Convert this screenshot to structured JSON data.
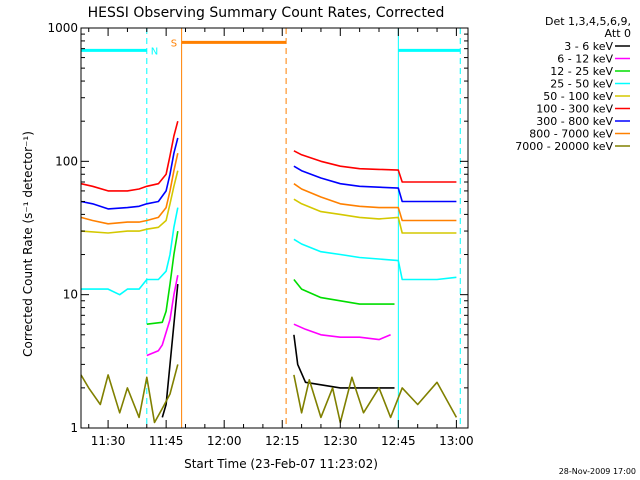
{
  "chart_data": {
    "type": "line",
    "title": "HESSI Observing Summary Count Rates, Corrected",
    "xlabel": "Start Time (23-Feb-07 11:23:02)",
    "ylabel": "Corrected Count Rate (s⁻¹ detector⁻¹)",
    "footer": "28-Nov-2009 17:00",
    "y_scale": "log",
    "ylim": [
      1,
      1000
    ],
    "xlim": [
      "11:23",
      "13:03"
    ],
    "x_ticks": [
      "11:30",
      "11:45",
      "12:00",
      "12:15",
      "12:30",
      "12:45",
      "13:00"
    ],
    "y_ticks": [
      "1",
      "10",
      "100",
      "1000"
    ],
    "legend": {
      "position": "top-right",
      "header": [
        "Det 1,3,4,5,6,9,",
        "Att 0"
      ]
    },
    "series": [
      {
        "name": "3 - 6 keV",
        "color": "#000000",
        "segments": [
          [
            [
              "11:44",
              1.2
            ],
            [
              "11:45",
              1.5
            ],
            [
              "11:46",
              3.0
            ],
            [
              "11:47",
              6.0
            ],
            [
              "11:48",
              12
            ]
          ],
          [
            [
              "12:18",
              5.0
            ],
            [
              "12:19",
              3.0
            ],
            [
              "12:21",
              2.2
            ],
            [
              "12:30",
              2.0
            ],
            [
              "12:40",
              2.0
            ],
            [
              "12:44",
              2.0
            ]
          ]
        ]
      },
      {
        "name": "6 - 12 keV",
        "color": "#ff00ff",
        "segments": [
          [
            [
              "11:40",
              3.5
            ],
            [
              "11:43",
              3.8
            ],
            [
              "11:44",
              4.2
            ],
            [
              "11:46",
              6.5
            ],
            [
              "11:47",
              10
            ],
            [
              "11:48",
              14
            ]
          ],
          [
            [
              "12:18",
              6.0
            ],
            [
              "12:21",
              5.5
            ],
            [
              "12:25",
              5.0
            ],
            [
              "12:30",
              4.8
            ],
            [
              "12:35",
              4.8
            ],
            [
              "12:40",
              4.6
            ],
            [
              "12:43",
              5.0
            ]
          ]
        ]
      },
      {
        "name": "12 - 25 keV",
        "color": "#00dd00",
        "segments": [
          [
            [
              "11:40",
              6.0
            ],
            [
              "11:44",
              6.2
            ],
            [
              "11:45",
              7.5
            ],
            [
              "11:46",
              12
            ],
            [
              "11:47",
              20
            ],
            [
              "11:48",
              30
            ]
          ],
          [
            [
              "12:18",
              13
            ],
            [
              "12:20",
              11
            ],
            [
              "12:25",
              9.5
            ],
            [
              "12:30",
              9.0
            ],
            [
              "12:35",
              8.5
            ],
            [
              "12:40",
              8.5
            ],
            [
              "12:44",
              8.5
            ]
          ]
        ]
      },
      {
        "name": "25 - 50 keV",
        "color": "#00ffff",
        "segments": [
          [
            [
              "11:23",
              11
            ],
            [
              "11:30",
              11
            ],
            [
              "11:33",
              10
            ],
            [
              "11:35",
              11
            ],
            [
              "11:38",
              11
            ],
            [
              "11:40",
              13
            ],
            [
              "11:43",
              13
            ],
            [
              "11:45",
              15
            ],
            [
              "11:46",
              20
            ],
            [
              "11:47",
              32
            ],
            [
              "11:48",
              45
            ]
          ],
          [
            [
              "12:18",
              26
            ],
            [
              "12:20",
              24
            ],
            [
              "12:25",
              21
            ],
            [
              "12:30",
              20
            ],
            [
              "12:35",
              19
            ],
            [
              "12:40",
              18.5
            ],
            [
              "12:45",
              18
            ],
            [
              "12:46",
              13
            ],
            [
              "12:50",
              13
            ],
            [
              "12:55",
              13
            ],
            [
              "13:00",
              13.5
            ]
          ]
        ]
      },
      {
        "name": "50 - 100 keV",
        "color": "#d4c800",
        "segments": [
          [
            [
              "11:23",
              30
            ],
            [
              "11:30",
              29
            ],
            [
              "11:35",
              30
            ],
            [
              "11:38",
              30
            ],
            [
              "11:40",
              31
            ],
            [
              "11:43",
              32
            ],
            [
              "11:45",
              36
            ],
            [
              "11:46",
              48
            ],
            [
              "11:47",
              65
            ],
            [
              "11:48",
              85
            ]
          ],
          [
            [
              "12:18",
              52
            ],
            [
              "12:20",
              48
            ],
            [
              "12:25",
              42
            ],
            [
              "12:30",
              40
            ],
            [
              "12:35",
              38
            ],
            [
              "12:40",
              37
            ],
            [
              "12:45",
              38
            ],
            [
              "12:46",
              29
            ],
            [
              "12:50",
              29
            ],
            [
              "12:55",
              29
            ],
            [
              "13:00",
              29
            ]
          ]
        ]
      },
      {
        "name": "100 - 300 keV",
        "color": "#ff0000",
        "segments": [
          [
            [
              "11:23",
              68
            ],
            [
              "11:26",
              65
            ],
            [
              "11:30",
              60
            ],
            [
              "11:35",
              60
            ],
            [
              "11:38",
              62
            ],
            [
              "11:40",
              65
            ],
            [
              "11:43",
              68
            ],
            [
              "11:45",
              80
            ],
            [
              "11:46",
              110
            ],
            [
              "11:47",
              155
            ],
            [
              "11:48",
              200
            ]
          ],
          [
            [
              "12:18",
              120
            ],
            [
              "12:20",
              112
            ],
            [
              "12:25",
              100
            ],
            [
              "12:30",
              92
            ],
            [
              "12:35",
              88
            ],
            [
              "12:40",
              87
            ],
            [
              "12:45",
              86
            ],
            [
              "12:46",
              70
            ],
            [
              "12:50",
              70
            ],
            [
              "12:55",
              70
            ],
            [
              "13:00",
              70
            ]
          ]
        ]
      },
      {
        "name": "300 - 800 keV",
        "color": "#0000ff",
        "segments": [
          [
            [
              "11:23",
              50
            ],
            [
              "11:26",
              48
            ],
            [
              "11:30",
              44
            ],
            [
              "11:35",
              45
            ],
            [
              "11:38",
              46
            ],
            [
              "11:40",
              48
            ],
            [
              "11:43",
              50
            ],
            [
              "11:45",
              60
            ],
            [
              "11:46",
              80
            ],
            [
              "11:47",
              115
            ],
            [
              "11:48",
              150
            ]
          ],
          [
            [
              "12:18",
              92
            ],
            [
              "12:20",
              85
            ],
            [
              "12:25",
              75
            ],
            [
              "12:30",
              68
            ],
            [
              "12:35",
              65
            ],
            [
              "12:40",
              64
            ],
            [
              "12:45",
              63
            ],
            [
              "12:46",
              50
            ],
            [
              "12:50",
              50
            ],
            [
              "12:55",
              50
            ],
            [
              "13:00",
              50
            ]
          ]
        ]
      },
      {
        "name": "800 - 7000 keV",
        "color": "#ff8000",
        "segments": [
          [
            [
              "11:23",
              38
            ],
            [
              "11:26",
              36
            ],
            [
              "11:30",
              34
            ],
            [
              "11:35",
              35
            ],
            [
              "11:38",
              35
            ],
            [
              "11:40",
              36
            ],
            [
              "11:43",
              38
            ],
            [
              "11:45",
              45
            ],
            [
              "11:46",
              60
            ],
            [
              "11:47",
              85
            ],
            [
              "11:48",
              115
            ]
          ],
          [
            [
              "12:18",
              68
            ],
            [
              "12:20",
              62
            ],
            [
              "12:25",
              54
            ],
            [
              "12:30",
              48
            ],
            [
              "12:35",
              46
            ],
            [
              "12:40",
              45
            ],
            [
              "12:45",
              45
            ],
            [
              "12:46",
              36
            ],
            [
              "12:50",
              36
            ],
            [
              "12:55",
              36
            ],
            [
              "13:00",
              36
            ]
          ]
        ]
      },
      {
        "name": "7000 - 20000 keV",
        "color": "#808000",
        "segments": [
          [
            [
              "11:23",
              2.5
            ],
            [
              "11:25",
              2.0
            ],
            [
              "11:28",
              1.5
            ],
            [
              "11:30",
              2.5
            ],
            [
              "11:33",
              1.3
            ],
            [
              "11:35",
              2.0
            ],
            [
              "11:38",
              1.2
            ],
            [
              "11:40",
              2.4
            ],
            [
              "11:42",
              1.1
            ],
            [
              "11:44",
              1.4
            ],
            [
              "11:46",
              1.8
            ],
            [
              "11:48",
              3.0
            ]
          ],
          [
            [
              "12:18",
              2.5
            ],
            [
              "12:20",
              1.3
            ],
            [
              "12:22",
              2.3
            ],
            [
              "12:25",
              1.2
            ],
            [
              "12:28",
              2.0
            ],
            [
              "12:30",
              1.1
            ],
            [
              "12:33",
              2.4
            ],
            [
              "12:36",
              1.3
            ],
            [
              "12:40",
              2.0
            ],
            [
              "12:43",
              1.2
            ],
            [
              "12:46",
              2.0
            ],
            [
              "12:50",
              1.5
            ],
            [
              "12:55",
              2.2
            ],
            [
              "13:00",
              1.2
            ]
          ]
        ]
      }
    ],
    "overlays": {
      "night_bars": [
        [
          "11:23",
          "11:40"
        ],
        [
          "12:45",
          "13:01"
        ]
      ],
      "night_level": 680,
      "night_label": "N",
      "night_label_time": "11:42",
      "night_lines_dashed": [
        "11:40",
        "13:01"
      ],
      "night_lines_solid": [
        "12:45"
      ],
      "saa_bar": [
        "11:49",
        "12:16"
      ],
      "saa_level": 780,
      "saa_label": "S",
      "saa_label_time": "11:47",
      "saa_lines_solid": [
        "11:49"
      ],
      "saa_lines_dashed": [
        "12:16"
      ]
    }
  }
}
